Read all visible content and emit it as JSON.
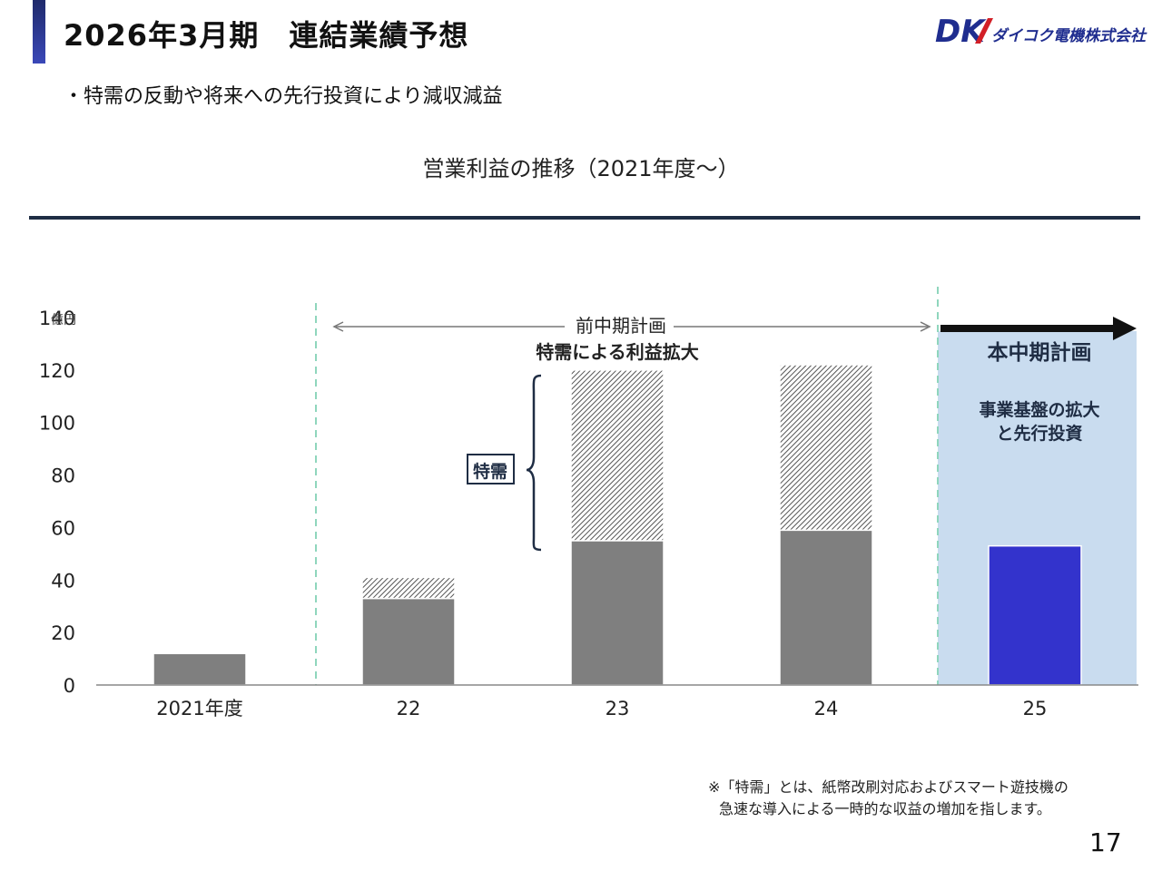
{
  "header": {
    "title": "2026年3月期　連結業績予想",
    "logo_mark": "DK",
    "logo_text": "ダイコク電機株式会社"
  },
  "subtitle": "・特需の反動や将来への先行投資により減収減益",
  "chart_data": {
    "type": "bar",
    "title": "営業利益の推移（2021年度～）",
    "unit_label": "億円",
    "categories": [
      "2021年度",
      "22",
      "23",
      "24",
      "25"
    ],
    "ylim": [
      0,
      140
    ],
    "yticks": [
      0,
      20,
      40,
      60,
      80,
      100,
      120,
      140
    ],
    "series": [
      {
        "name": "",
        "values": [
          12,
          33,
          55,
          59,
          53
        ],
        "colors": [
          "#7f7f7f",
          "#7f7f7f",
          "#7f7f7f",
          "#7f7f7f",
          "#3333cc"
        ]
      },
      {
        "name": "特需",
        "values": [
          0,
          8,
          65,
          63,
          0
        ],
        "pattern": "hatched"
      }
    ],
    "grid": false,
    "annotations": {
      "prev_plan_label": "前中期計画",
      "prev_plan_sub": "特需による利益拡大",
      "tokuju_box": "特需",
      "current_plan_label": "本中期計画",
      "current_plan_sub1": "事業基盤の拡大",
      "current_plan_sub2": "と先行投資"
    },
    "colors": {
      "bar": "#7f7f7f",
      "highlight_bar": "#3333cc",
      "plan_region": "#c9dcef",
      "divider": "#8fd6bd",
      "brace": "#1f2d44",
      "arrow": "#111111"
    }
  },
  "footnote": {
    "line1": "※「特需」とは、紙幣改刷対応およびスマート遊技機の",
    "line2": "急速な導入による一時的な収益の増加を指します。"
  },
  "page_number": "17"
}
